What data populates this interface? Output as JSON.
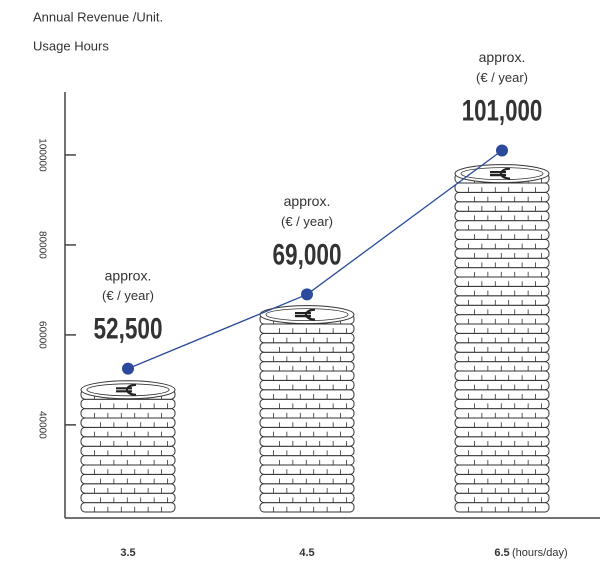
{
  "chart_data": {
    "type": "line",
    "title": "Annual Revenue /Unit.",
    "x_label": "Usage Hours",
    "x_unit": "(hours/day)",
    "value_note": "approx.",
    "value_unit": "(€ / year)",
    "categories": [
      "3.5",
      "4.5",
      "6.5"
    ],
    "values": [
      52500,
      69000,
      101000
    ],
    "value_labels": [
      "52,500",
      "69,000",
      "101,000"
    ],
    "color": "#2b4a9b",
    "ylim": [
      19300,
      114000
    ],
    "yticks": [
      40000,
      60000,
      80000,
      100000
    ]
  }
}
